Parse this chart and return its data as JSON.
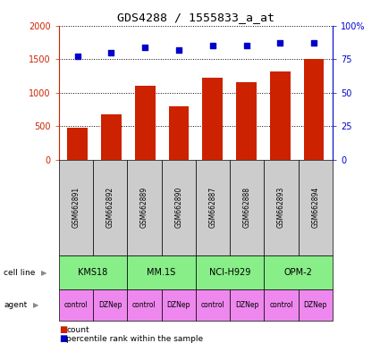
{
  "title": "GDS4288 / 1555833_a_at",
  "samples": [
    "GSM662891",
    "GSM662892",
    "GSM662889",
    "GSM662890",
    "GSM662887",
    "GSM662888",
    "GSM662893",
    "GSM662894"
  ],
  "bar_values": [
    470,
    680,
    1100,
    790,
    1220,
    1160,
    1320,
    1500
  ],
  "percentile_values": [
    77,
    80,
    84,
    82,
    85,
    85,
    87,
    87
  ],
  "bar_color": "#cc2200",
  "dot_color": "#0000cc",
  "ylim_left": [
    0,
    2000
  ],
  "ylim_right": [
    0,
    100
  ],
  "yticks_left": [
    0,
    500,
    1000,
    1500,
    2000
  ],
  "ytick_labels_left": [
    "0",
    "500",
    "1000",
    "1500",
    "2000"
  ],
  "yticks_right": [
    0,
    25,
    50,
    75,
    100
  ],
  "ytick_labels_right": [
    "0",
    "25",
    "50",
    "75",
    "100%"
  ],
  "cell_lines": [
    "KMS18",
    "MM.1S",
    "NCI-H929",
    "OPM-2"
  ],
  "cell_line_color": "#88ee88",
  "agent_labels": [
    "control",
    "DZNep",
    "control",
    "DZNep",
    "control",
    "DZNep",
    "control",
    "DZNep"
  ],
  "agent_color": "#ee88ee",
  "gsm_bg_color": "#cccccc",
  "legend_count_color": "#cc2200",
  "legend_dot_color": "#0000cc",
  "ylabel_left_color": "#cc2200",
  "ylabel_right_color": "#0000cc"
}
